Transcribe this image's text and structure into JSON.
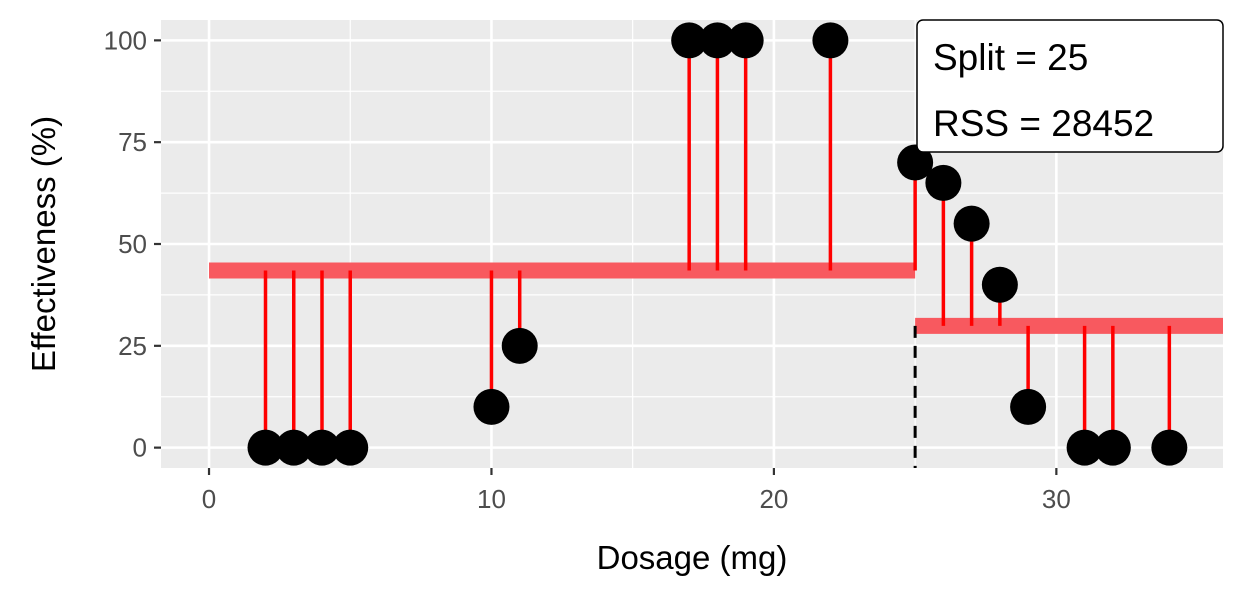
{
  "chart_data": {
    "type": "scatter",
    "xlabel": "Dosage (mg)",
    "ylabel": "Effectiveness (%)",
    "xlim": [
      -1.7,
      35.9
    ],
    "ylim": [
      -5,
      105
    ],
    "x_ticks": [
      0,
      10,
      20,
      30
    ],
    "x_tick_labels": [
      "0",
      "10",
      "20",
      "30"
    ],
    "y_ticks": [
      0,
      25,
      50,
      75,
      100
    ],
    "y_tick_labels": [
      "0",
      "25",
      "50",
      "75",
      "100"
    ],
    "grid": true,
    "points": [
      {
        "x": 2,
        "y": 0
      },
      {
        "x": 3,
        "y": 0
      },
      {
        "x": 4,
        "y": 0
      },
      {
        "x": 5,
        "y": 0
      },
      {
        "x": 10,
        "y": 10
      },
      {
        "x": 11,
        "y": 25
      },
      {
        "x": 17,
        "y": 100
      },
      {
        "x": 18,
        "y": 100
      },
      {
        "x": 19,
        "y": 100
      },
      {
        "x": 22,
        "y": 100
      },
      {
        "x": 25,
        "y": 70
      },
      {
        "x": 26,
        "y": 65
      },
      {
        "x": 27,
        "y": 55
      },
      {
        "x": 28,
        "y": 40
      },
      {
        "x": 29,
        "y": 10
      },
      {
        "x": 31,
        "y": 0
      },
      {
        "x": 32,
        "y": 0
      },
      {
        "x": 34,
        "y": 0
      }
    ],
    "split": 25,
    "segments": [
      {
        "x_start": 0,
        "x_end": 25,
        "mean": 43.5
      },
      {
        "x_start": 25,
        "x_end": 35.9,
        "mean": 29.9
      }
    ],
    "annotation": {
      "lines": [
        "Split = 25",
        "RSS = 28452"
      ],
      "placement": "top-right"
    },
    "colors": {
      "panel": "#ebebeb",
      "grid": "#ffffff",
      "points": "#000000",
      "residuals": "#ff0000",
      "mean_line": "#f8595f",
      "split_line": "#000000"
    }
  }
}
